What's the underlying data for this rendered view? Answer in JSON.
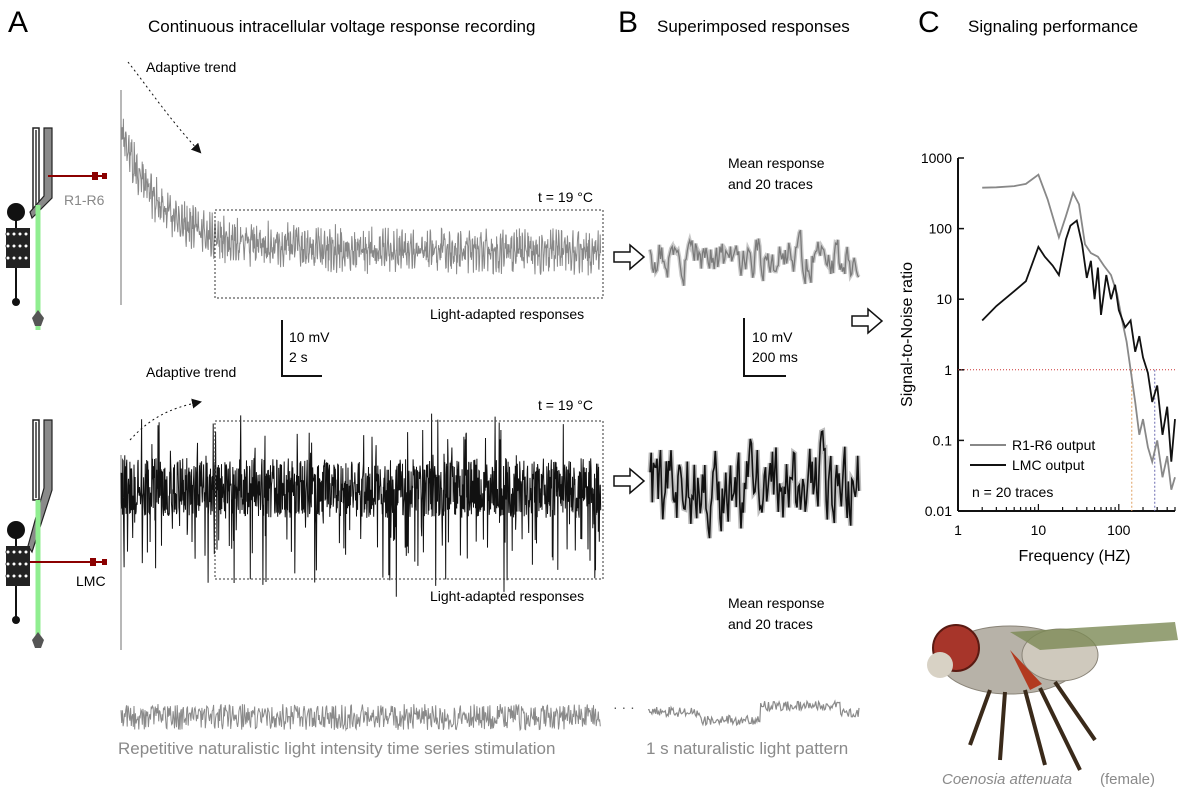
{
  "colors": {
    "r_trace": "#888888",
    "lmc_trace": "#111111",
    "stim": "#8a8a8a",
    "guide": "#90ee90",
    "electrode": "#8b0000",
    "threshold": "#cc3333",
    "cutoff_r": "#e0a060",
    "cutoff_lmc": "#6a6ab0",
    "caption_grey": "#8a8a8a"
  },
  "panel_a": {
    "letter": "A",
    "title": "Continuous intracellular voltage response recording",
    "r_adaptive_label": "Adaptive trend",
    "lmc_adaptive_label": "Adaptive trend",
    "r_temp": "t = 19 °C",
    "lmc_temp": "t = 19 °C",
    "r_adapted_label": "Light-adapted responses",
    "lmc_adapted_label": "Light-adapted responses",
    "r_cell_label": "R1-R6",
    "lmc_cell_label": "LMC",
    "scale_v": "10 mV",
    "scale_t": "2 s",
    "stim_caption": "Repetitive naturalistic light intensity time series stimulation",
    "ellipsis": "· · ·"
  },
  "panel_b": {
    "letter": "B",
    "title": "Superimposed responses",
    "r_caption_line1": "Mean response",
    "r_caption_line2": "and 20 traces",
    "lmc_caption_line1": "Mean response",
    "lmc_caption_line2": "and 20 traces",
    "scale_v": "10 mV",
    "scale_t": "200 ms",
    "stim_caption": "1 s naturalistic light pattern"
  },
  "panel_c": {
    "letter": "C",
    "title": "Signaling performance",
    "species": "Coenosia attenuata",
    "species_suffix": "(female)"
  },
  "chart_data": {
    "type": "line",
    "title": "Signaling performance",
    "xlabel": "Frequency (HZ)",
    "ylabel": "Signal-to-Noise ratio",
    "xscale": "log",
    "yscale": "log",
    "xlim": [
      1,
      500
    ],
    "ylim": [
      0.01,
      1000
    ],
    "x_ticks": [
      1,
      10,
      100
    ],
    "x_tick_labels": [
      "1",
      "10",
      "100"
    ],
    "y_ticks": [
      0.01,
      0.1,
      1,
      10,
      100,
      1000
    ],
    "y_tick_labels": [
      "0.01",
      "0.1",
      "1",
      "10",
      "100",
      "1000"
    ],
    "threshold_y": 1,
    "cutoffs": [
      {
        "series": "R1-R6 output",
        "x": 145
      },
      {
        "series": "LMC output",
        "x": 280
      }
    ],
    "legend": [
      "R1-R6 output",
      "LMC output"
    ],
    "annotation": "n = 20 traces",
    "legend_position": "bottom-left",
    "series": [
      {
        "name": "R1-R6 output",
        "x": [
          2,
          3,
          5,
          7,
          10,
          13,
          18,
          22,
          27,
          32,
          38,
          45,
          55,
          65,
          80,
          95,
          110,
          125,
          140,
          160,
          180,
          200,
          230,
          260,
          300,
          350,
          400,
          450,
          500
        ],
        "values": [
          380,
          385,
          400,
          430,
          580,
          260,
          75,
          150,
          320,
          220,
          60,
          45,
          40,
          30,
          22,
          12,
          5,
          2.5,
          1.0,
          0.35,
          0.12,
          0.2,
          0.08,
          0.05,
          0.1,
          0.03,
          0.06,
          0.02,
          0.03
        ]
      },
      {
        "name": "LMC output",
        "x": [
          2,
          3,
          5,
          7,
          10,
          12,
          15,
          18,
          22,
          25,
          30,
          35,
          40,
          45,
          50,
          55,
          60,
          70,
          80,
          90,
          100,
          120,
          140,
          160,
          180,
          200,
          230,
          260,
          300,
          350,
          400,
          450,
          500
        ],
        "values": [
          5,
          8,
          13,
          18,
          55,
          40,
          30,
          22,
          70,
          110,
          130,
          60,
          20,
          35,
          10,
          28,
          6,
          22,
          10,
          16,
          7,
          4,
          5,
          1.8,
          3,
          1.5,
          0.9,
          0.35,
          0.6,
          0.12,
          0.3,
          0.05,
          0.2
        ]
      }
    ]
  }
}
